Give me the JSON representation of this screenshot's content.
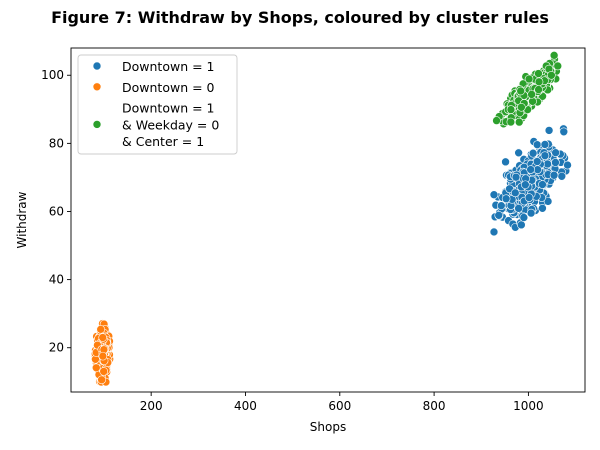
{
  "chart_data": {
    "type": "scatter",
    "title": "Figure 7: Withdraw by Shops, coloured by cluster rules",
    "xlabel": "Shops",
    "ylabel": "Withdraw",
    "xlim": [
      30,
      1120
    ],
    "ylim": [
      7,
      108
    ],
    "xticks": [
      200,
      400,
      600,
      800,
      1000
    ],
    "yticks": [
      20,
      40,
      60,
      80,
      100
    ],
    "grid": false,
    "legend_position": "top-left",
    "series": [
      {
        "name": "Downtown = 1",
        "label_lines": [
          "Downtown = 1"
        ],
        "color": "#1f77b4",
        "center": [
          1005,
          69
        ],
        "spread": [
          30,
          4.2
        ],
        "slope": 0.1,
        "count": 420,
        "seed": 11
      },
      {
        "name": "Downtown = 0",
        "label_lines": [
          "Downtown = 0"
        ],
        "color": "#ff7f0e",
        "center": [
          97,
          18.5
        ],
        "spread": [
          6,
          3.3
        ],
        "slope": 0,
        "count": 320,
        "seed": 23
      },
      {
        "name": "Downtown = 1 & Weekday = 0 & Center = 1",
        "label_lines": [
          "Downtown = 1",
          "& Weekday = 0",
          "& Center = 1"
        ],
        "color": "#2ca02c",
        "center": [
          1000,
          94.5
        ],
        "spread": [
          26,
          2.4
        ],
        "slope": 0.13,
        "count": 220,
        "seed": 37
      }
    ]
  }
}
